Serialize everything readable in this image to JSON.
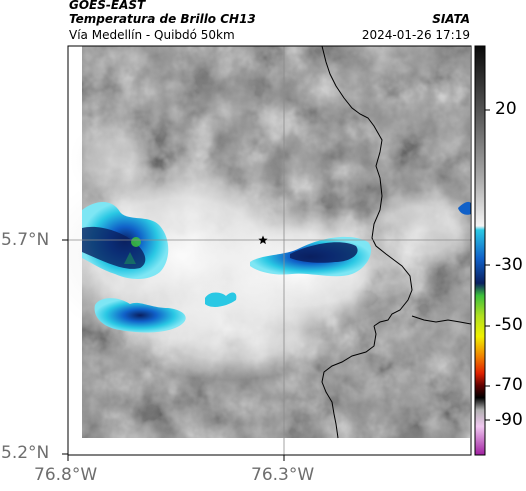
{
  "header": {
    "satellite": "GOES-EAST",
    "product": "Temperatura de Brillo CH13",
    "region": "Vía Medellín - Quibdó 50km",
    "agency": "SIATA",
    "timestamp": "2024-01-26 17:19"
  },
  "map": {
    "lat_ticks": [
      "5.7°N",
      "5.2°N"
    ],
    "lon_ticks": [
      "76.8°W",
      "76.3°W"
    ],
    "grid": true,
    "marker": "star-icon",
    "border_color": "#000000"
  },
  "colorbar": {
    "ticks": [
      "20",
      "-30",
      "-50",
      "-70",
      "-90"
    ],
    "colors": {
      "warm_top": "#1e1e1e",
      "warm_mid": "#9a9a9a",
      "cold_white": "#f4f4f4",
      "cyan": "#2ac8e4",
      "blue": "#1060c8",
      "navy": "#0a2060",
      "green": "#3cc03c",
      "yellow": "#f0f000",
      "red": "#e02000",
      "black": "#000000",
      "magenta": "#c040c0"
    }
  }
}
